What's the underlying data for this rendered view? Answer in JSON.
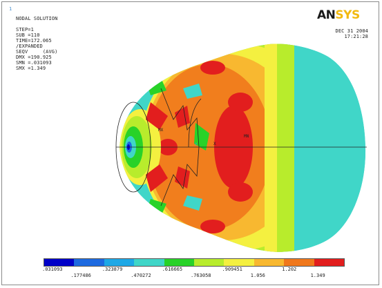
{
  "window_number": "1",
  "header_lines": [
    "NODAL SOLUTION",
    "",
    "STEP=1",
    "SUB =110",
    "TIME=172.065",
    "/EXPANDED",
    "SEQV     (AVG)",
    "DMX =190.925",
    "SMN =.031093",
    "SMX =1.349"
  ],
  "logo": {
    "part1": "AN",
    "part2": "SYS"
  },
  "date": "DEC 31 2004",
  "time": "17:21:28",
  "markers": {
    "max": "MX",
    "min": "MN",
    "x": "X"
  },
  "legend": {
    "colors": [
      "#0000c8",
      "#1e6ae0",
      "#1ea8e6",
      "#40d6c8",
      "#28d228",
      "#b8ec2c",
      "#f4f040",
      "#f8b830",
      "#f0781c",
      "#e21e1e"
    ],
    "values_top": [
      ".031093",
      ".323879",
      ".616665",
      ".909451",
      "1.202"
    ],
    "values_bottom": [
      ".177486",
      ".470272",
      ".763058",
      "1.056",
      "1.349"
    ]
  }
}
